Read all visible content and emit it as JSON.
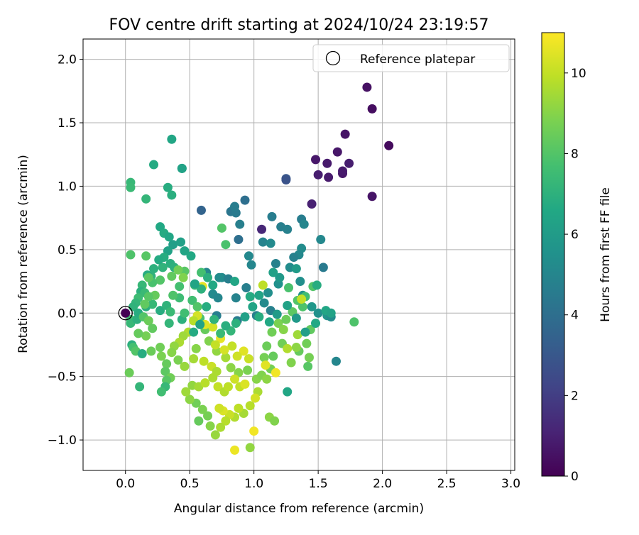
{
  "chart_data": {
    "type": "scatter",
    "title": "FOV centre drift starting at 2024/10/24 23:19:57",
    "xlabel": "Angular distance from reference (arcmin)",
    "ylabel": "Rotation from reference (arcmin)",
    "xlim": [
      -0.33,
      3.03
    ],
    "ylim": [
      -1.24,
      2.16
    ],
    "xticks": [
      0.0,
      0.5,
      1.0,
      1.5,
      2.0,
      2.5,
      3.0
    ],
    "xtick_labels": [
      "0.0",
      "0.5",
      "1.0",
      "1.5",
      "2.0",
      "2.5",
      "3.0"
    ],
    "yticks": [
      -1.0,
      -0.5,
      0.0,
      0.5,
      1.0,
      1.5,
      2.0
    ],
    "ytick_labels": [
      "−1.0",
      "−0.5",
      "0.0",
      "0.5",
      "1.0",
      "1.5",
      "2.0"
    ],
    "grid": true,
    "legend": {
      "placement": "top-right",
      "label": "Reference platepar"
    },
    "reference_point": {
      "x": 0.0,
      "y": 0.0
    },
    "colorbar": {
      "label": "Hours from first FF file",
      "colormap": "viridis",
      "range": [
        0,
        11
      ],
      "ticks": [
        0,
        2,
        4,
        6,
        8,
        10
      ],
      "tick_labels": [
        "0",
        "2",
        "4",
        "6",
        "8",
        "10"
      ]
    },
    "note": "Points listed as [x, y, hours]; values estimated from the plot.",
    "points": [
      [
        1.88,
        1.78,
        0.5
      ],
      [
        1.92,
        1.61,
        0.4
      ],
      [
        2.05,
        1.32,
        0.3
      ],
      [
        1.71,
        1.41,
        0.6
      ],
      [
        1.65,
        1.27,
        0.7
      ],
      [
        1.57,
        1.18,
        0.8
      ],
      [
        1.48,
        1.21,
        0.7
      ],
      [
        1.5,
        1.09,
        0.9
      ],
      [
        1.58,
        1.07,
        0.8
      ],
      [
        1.69,
        1.1,
        0.7
      ],
      [
        1.74,
        1.18,
        0.9
      ],
      [
        1.92,
        0.92,
        0.6
      ],
      [
        1.45,
        0.86,
        1.0
      ],
      [
        1.06,
        0.66,
        1.2
      ],
      [
        1.69,
        1.12,
        0.8
      ],
      [
        1.25,
        1.06,
        3.0
      ],
      [
        1.25,
        1.05,
        2.8
      ],
      [
        0.59,
        0.81,
        3.5
      ],
      [
        0.93,
        0.89,
        4.0
      ],
      [
        0.82,
        0.8,
        4.3
      ],
      [
        0.86,
        0.79,
        4.5
      ],
      [
        0.85,
        0.84,
        4.6
      ],
      [
        0.89,
        0.7,
        4.7
      ],
      [
        0.88,
        0.58,
        4.0
      ],
      [
        1.14,
        0.76,
        4.6
      ],
      [
        1.21,
        0.68,
        4.7
      ],
      [
        1.37,
        0.74,
        4.6
      ],
      [
        1.26,
        0.66,
        4.8
      ],
      [
        1.39,
        0.7,
        5.0
      ],
      [
        1.52,
        0.58,
        5.1
      ],
      [
        1.07,
        0.56,
        4.9
      ],
      [
        0.96,
        0.45,
        5.1
      ],
      [
        0.98,
        0.38,
        5.0
      ],
      [
        1.13,
        0.55,
        5.2
      ],
      [
        1.37,
        0.51,
        5.3
      ],
      [
        1.35,
        0.46,
        5.1
      ],
      [
        1.31,
        0.44,
        4.8
      ],
      [
        1.54,
        0.36,
        4.5
      ],
      [
        1.17,
        0.39,
        4.8
      ],
      [
        0.63,
        0.32,
        5.0
      ],
      [
        0.75,
        0.28,
        5.2
      ],
      [
        0.8,
        0.27,
        4.7
      ],
      [
        0.73,
        0.28,
        5.3
      ],
      [
        0.94,
        0.2,
        4.7
      ],
      [
        0.86,
        0.12,
        4.9
      ],
      [
        0.68,
        0.15,
        5.2
      ],
      [
        0.72,
        0.12,
        5.0
      ],
      [
        0.71,
        -0.02,
        4.6
      ],
      [
        0.87,
        -0.06,
        4.5
      ],
      [
        1.02,
        -0.02,
        4.7
      ],
      [
        1.13,
        0.02,
        4.8
      ],
      [
        1.08,
        0.08,
        5.2
      ],
      [
        1.11,
        0.16,
        5.4
      ],
      [
        1.19,
        0.23,
        5.5
      ],
      [
        1.28,
        0.36,
        5.3
      ],
      [
        1.36,
        0.25,
        5.4
      ],
      [
        1.38,
        0.14,
        5.6
      ],
      [
        1.45,
        0.05,
        5.8
      ],
      [
        1.5,
        0.0,
        5.5
      ],
      [
        1.57,
        -0.02,
        5.7
      ],
      [
        1.6,
        -0.03,
        5.3
      ],
      [
        1.64,
        -0.38,
        5.0
      ],
      [
        1.26,
        -0.62,
        6.5
      ],
      [
        0.36,
        1.37,
        6.5
      ],
      [
        0.22,
        1.17,
        6.7
      ],
      [
        0.44,
        1.14,
        6.6
      ],
      [
        0.44,
        1.14,
        6.3
      ],
      [
        0.33,
        0.99,
        6.8
      ],
      [
        0.36,
        0.93,
        6.9
      ],
      [
        0.16,
        0.9,
        7.2
      ],
      [
        0.04,
        1.03,
        7.3
      ],
      [
        0.04,
        0.99,
        7.4
      ],
      [
        0.27,
        0.68,
        6.6
      ],
      [
        0.3,
        0.63,
        6.7
      ],
      [
        0.34,
        0.6,
        6.5
      ],
      [
        0.43,
        0.56,
        6.2
      ],
      [
        0.37,
        0.54,
        6.1
      ],
      [
        0.33,
        0.49,
        6.3
      ],
      [
        0.46,
        0.49,
        6.4
      ],
      [
        0.51,
        0.45,
        6.6
      ],
      [
        0.3,
        0.44,
        6.8
      ],
      [
        0.35,
        0.39,
        6.9
      ],
      [
        0.38,
        0.36,
        7.0
      ],
      [
        0.29,
        0.36,
        7.1
      ],
      [
        0.26,
        0.42,
        6.7
      ],
      [
        0.22,
        0.35,
        7.0
      ],
      [
        0.2,
        0.29,
        7.1
      ],
      [
        0.17,
        0.3,
        6.8
      ],
      [
        0.13,
        0.22,
        7.3
      ],
      [
        0.12,
        0.17,
        7.0
      ],
      [
        0.15,
        0.16,
        7.4
      ],
      [
        0.1,
        0.12,
        7.5
      ],
      [
        0.08,
        0.08,
        7.2
      ],
      [
        0.06,
        0.05,
        7.1
      ],
      [
        0.04,
        -0.05,
        7.6
      ],
      [
        0.04,
        -0.08,
        7.3
      ],
      [
        0.09,
        -0.05,
        7.0
      ],
      [
        0.1,
        0.0,
        6.8
      ],
      [
        0.16,
        0.05,
        6.9
      ],
      [
        0.21,
        0.07,
        7.3
      ],
      [
        0.27,
        0.02,
        6.8
      ],
      [
        0.32,
        0.06,
        7.1
      ],
      [
        0.35,
        0.01,
        7.4
      ],
      [
        0.34,
        -0.08,
        7.2
      ],
      [
        0.44,
        -0.05,
        7.0
      ],
      [
        0.46,
        0.0,
        7.6
      ],
      [
        0.42,
        0.12,
        7.5
      ],
      [
        0.37,
        0.14,
        7.9
      ],
      [
        0.42,
        0.21,
        7.7
      ],
      [
        0.46,
        0.33,
        8.1
      ],
      [
        0.36,
        0.29,
        8.3
      ],
      [
        0.27,
        0.26,
        8.0
      ],
      [
        0.21,
        0.24,
        7.8
      ],
      [
        0.18,
        0.28,
        8.2
      ],
      [
        0.23,
        0.14,
        8.4
      ],
      [
        0.18,
        0.13,
        8.1
      ],
      [
        0.15,
        0.07,
        8.3
      ],
      [
        0.14,
        -0.03,
        8.0
      ],
      [
        0.18,
        -0.06,
        8.5
      ],
      [
        0.21,
        -0.12,
        8.3
      ],
      [
        0.16,
        -0.18,
        8.7
      ],
      [
        0.1,
        -0.16,
        8.4
      ],
      [
        0.05,
        -0.25,
        6.9
      ],
      [
        0.06,
        -0.27,
        7.7
      ],
      [
        0.08,
        -0.3,
        8.0
      ],
      [
        0.13,
        -0.32,
        6.8
      ],
      [
        0.2,
        -0.3,
        8.5
      ],
      [
        0.27,
        -0.27,
        8.6
      ],
      [
        0.28,
        -0.34,
        8.8
      ],
      [
        0.32,
        -0.4,
        8.4
      ],
      [
        0.31,
        -0.46,
        8.2
      ],
      [
        0.35,
        -0.51,
        8.6
      ],
      [
        0.32,
        -0.53,
        8.1
      ],
      [
        0.31,
        -0.58,
        7.3
      ],
      [
        0.28,
        -0.62,
        7.6
      ],
      [
        0.03,
        -0.47,
        8.5
      ],
      [
        0.11,
        -0.58,
        7.2
      ],
      [
        0.04,
        0.46,
        7.9
      ],
      [
        0.16,
        0.45,
        8.1
      ],
      [
        0.41,
        0.34,
        8.6
      ],
      [
        0.45,
        0.28,
        8.9
      ],
      [
        0.59,
        0.32,
        7.7
      ],
      [
        0.54,
        0.22,
        7.4
      ],
      [
        0.52,
        0.1,
        7.6
      ],
      [
        0.56,
        0.05,
        8.0
      ],
      [
        0.58,
        -0.04,
        7.8
      ],
      [
        0.62,
        -0.13,
        8.4
      ],
      [
        0.65,
        -0.22,
        8.9
      ],
      [
        0.71,
        -0.3,
        9.2
      ],
      [
        0.78,
        -0.35,
        9.5
      ],
      [
        0.82,
        -0.43,
        9.1
      ],
      [
        0.88,
        -0.47,
        9.0
      ],
      [
        0.95,
        -0.45,
        8.8
      ],
      [
        1.02,
        -0.52,
        9.0
      ],
      [
        1.08,
        -0.35,
        8.7
      ],
      [
        1.1,
        -0.26,
        8.5
      ],
      [
        1.14,
        -0.15,
        8.6
      ],
      [
        1.19,
        -0.08,
        8.8
      ],
      [
        1.23,
        -0.13,
        9.0
      ],
      [
        1.25,
        -0.05,
        8.5
      ],
      [
        1.3,
        0.01,
        8.2
      ],
      [
        1.34,
        0.1,
        8.0
      ],
      [
        1.27,
        0.2,
        7.8
      ],
      [
        1.4,
        0.13,
        7.6
      ],
      [
        1.46,
        0.21,
        8.0
      ],
      [
        1.38,
        0.05,
        7.9
      ],
      [
        1.44,
        -0.13,
        8.3
      ],
      [
        1.41,
        -0.24,
        8.6
      ],
      [
        1.43,
        -0.35,
        8.7
      ],
      [
        1.42,
        -0.42,
        8.1
      ],
      [
        1.35,
        -0.3,
        8.4
      ],
      [
        1.29,
        -0.39,
        8.9
      ],
      [
        1.33,
        -0.27,
        9.1
      ],
      [
        1.22,
        -0.24,
        8.6
      ],
      [
        1.15,
        -0.34,
        8.4
      ],
      [
        1.13,
        -0.44,
        8.7
      ],
      [
        1.06,
        -0.49,
        8.9
      ],
      [
        1.1,
        -0.52,
        9.1
      ],
      [
        1.03,
        -0.62,
        9.6
      ],
      [
        1.01,
        -0.67,
        10.3
      ],
      [
        0.97,
        -0.73,
        9.8
      ],
      [
        0.92,
        -0.79,
        9.5
      ],
      [
        0.88,
        -0.75,
        9.9
      ],
      [
        0.85,
        -0.82,
        9.7
      ],
      [
        0.81,
        -0.8,
        10.1
      ],
      [
        0.76,
        -0.77,
        10.4
      ],
      [
        0.73,
        -0.75,
        10.2
      ],
      [
        0.78,
        -0.85,
        9.8
      ],
      [
        0.74,
        -0.9,
        9.6
      ],
      [
        0.7,
        -0.96,
        9.3
      ],
      [
        0.66,
        -0.89,
        9.0
      ],
      [
        0.64,
        -0.81,
        8.7
      ],
      [
        0.6,
        -0.76,
        8.8
      ],
      [
        0.57,
        -0.85,
        8.4
      ],
      [
        0.55,
        -0.71,
        8.6
      ],
      [
        0.5,
        -0.68,
        9.1
      ],
      [
        0.47,
        -0.62,
        9.4
      ],
      [
        0.52,
        -0.57,
        9.2
      ],
      [
        0.57,
        -0.58,
        9.5
      ],
      [
        0.62,
        -0.55,
        9.8
      ],
      [
        0.68,
        -0.51,
        9.6
      ],
      [
        0.72,
        -0.58,
        10.0
      ],
      [
        0.77,
        -0.62,
        9.7
      ],
      [
        0.8,
        -0.58,
        9.9
      ],
      [
        0.85,
        -0.52,
        10.2
      ],
      [
        0.89,
        -0.58,
        10.0
      ],
      [
        0.93,
        -0.56,
        10.4
      ],
      [
        0.96,
        -0.36,
        10.1
      ],
      [
        0.92,
        -0.3,
        10.5
      ],
      [
        0.87,
        -0.34,
        10.2
      ],
      [
        0.83,
        -0.26,
        10.0
      ],
      [
        0.77,
        -0.29,
        10.3
      ],
      [
        0.74,
        -0.2,
        10.6
      ],
      [
        0.7,
        -0.25,
        10.0
      ],
      [
        0.68,
        -0.11,
        10.3
      ],
      [
        0.62,
        -0.09,
        10.5
      ],
      [
        0.56,
        -0.02,
        10.3
      ],
      [
        0.53,
        -0.06,
        9.8
      ],
      [
        0.49,
        -0.15,
        9.7
      ],
      [
        0.45,
        -0.18,
        9.4
      ],
      [
        0.42,
        -0.23,
        9.6
      ],
      [
        0.38,
        -0.26,
        9.2
      ],
      [
        0.36,
        -0.31,
        9.0
      ],
      [
        0.41,
        -0.37,
        8.8
      ],
      [
        0.46,
        -0.42,
        9.3
      ],
      [
        0.53,
        -0.36,
        9.5
      ],
      [
        0.55,
        -0.28,
        9.0
      ],
      [
        0.61,
        -0.38,
        9.9
      ],
      [
        0.67,
        -0.42,
        10.1
      ],
      [
        0.71,
        -0.46,
        9.6
      ],
      [
        0.6,
        0.21,
        10.6
      ],
      [
        0.85,
        -1.08,
        10.7
      ],
      [
        0.97,
        -1.06,
        9.2
      ],
      [
        1.0,
        -0.93,
        10.8
      ],
      [
        1.12,
        -0.82,
        9.1
      ],
      [
        1.16,
        -0.85,
        8.9
      ],
      [
        1.09,
        -0.41,
        10.5
      ],
      [
        1.17,
        -0.47,
        10.8
      ],
      [
        1.26,
        -0.28,
        9.7
      ],
      [
        1.34,
        -0.17,
        9.4
      ],
      [
        1.37,
        0.11,
        10.0
      ],
      [
        1.07,
        0.22,
        9.9
      ],
      [
        0.78,
        0.54,
        7.8
      ],
      [
        0.75,
        0.67,
        8.0
      ],
      [
        1.78,
        -0.07,
        7.9
      ],
      [
        1.33,
        0.35,
        6.0
      ],
      [
        1.2,
        0.28,
        5.9
      ],
      [
        1.15,
        0.32,
        6.2
      ],
      [
        1.04,
        0.14,
        6.4
      ],
      [
        0.97,
        0.13,
        6.7
      ],
      [
        0.85,
        0.25,
        6.5
      ],
      [
        0.68,
        0.22,
        6.6
      ],
      [
        0.64,
        0.28,
        6.9
      ],
      [
        0.59,
        0.19,
        7.0
      ],
      [
        0.54,
        0.23,
        6.4
      ],
      [
        1.49,
        0.22,
        6.8
      ],
      [
        1.56,
        0.02,
        6.5
      ],
      [
        1.6,
        0.0,
        6.3
      ],
      [
        1.48,
        -0.08,
        6.6
      ],
      [
        1.4,
        -0.15,
        6.1
      ],
      [
        1.33,
        -0.04,
        5.9
      ],
      [
        1.26,
        0.06,
        6.3
      ],
      [
        1.18,
        -0.01,
        6.0
      ],
      [
        1.12,
        -0.07,
        6.6
      ],
      [
        1.04,
        -0.03,
        6.8
      ],
      [
        0.99,
        0.05,
        6.4
      ],
      [
        0.93,
        -0.03,
        6.2
      ],
      [
        0.86,
        -0.08,
        7.0
      ],
      [
        0.82,
        -0.14,
        7.2
      ],
      [
        0.78,
        -0.1,
        6.9
      ],
      [
        0.74,
        -0.16,
        7.4
      ],
      [
        0.69,
        -0.05,
        7.1
      ],
      [
        0.63,
        0.05,
        6.8
      ],
      [
        0.58,
        -0.09,
        6.3
      ],
      [
        0.53,
        -0.15,
        6.7
      ]
    ]
  }
}
